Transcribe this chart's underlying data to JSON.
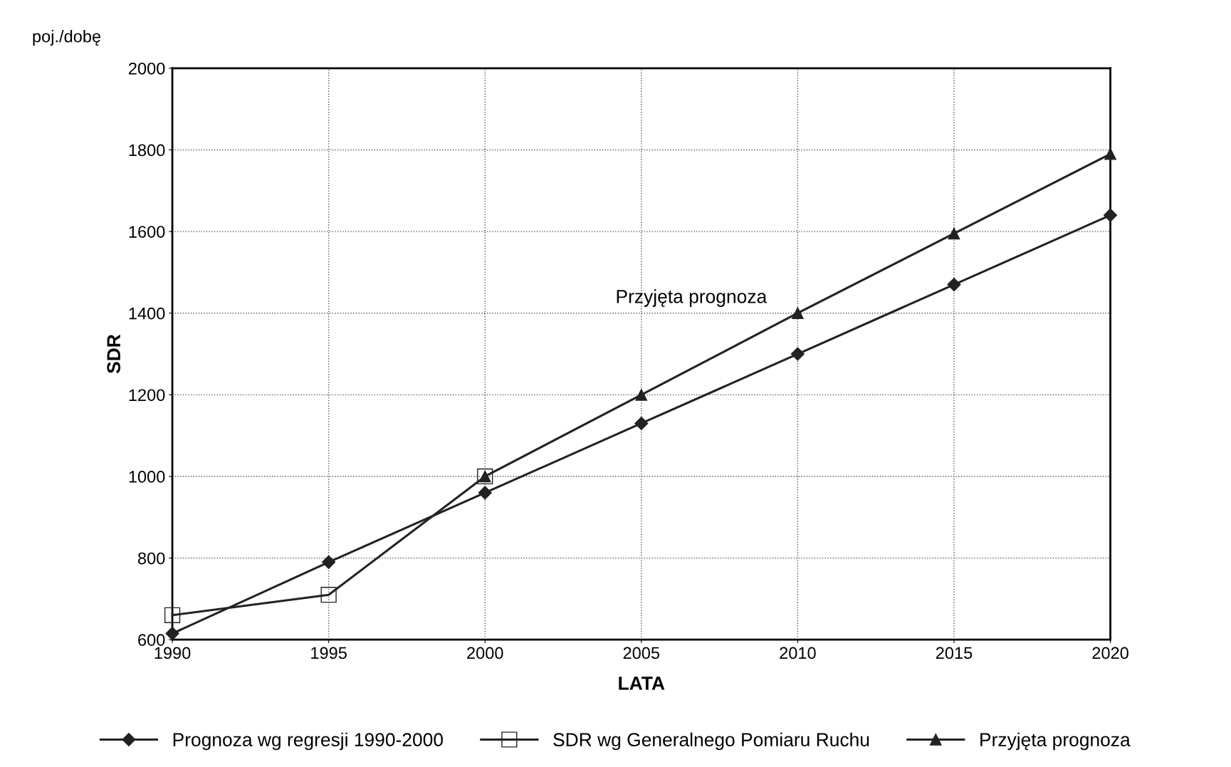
{
  "chart_data": {
    "type": "line",
    "xlabel": "LATA",
    "ylabel": "SDR",
    "x": [
      1990,
      1995,
      2000,
      2005,
      2010,
      2015,
      2020
    ],
    "series": [
      {
        "name": "Prognoza wg regresji 1990-2000",
        "color": "#222222",
        "marker": "diamond",
        "values": [
          615,
          790,
          960,
          1130,
          1300,
          1470,
          1640
        ]
      },
      {
        "name": "SDR wg Generalnego Pomiaru Ruchu",
        "color": "#222222",
        "marker": "square",
        "values": [
          660,
          710,
          1000,
          null,
          null,
          null,
          null
        ]
      },
      {
        "name": "Przyjęta prognoza",
        "color": "#222222",
        "marker": "triangle",
        "values": [
          null,
          null,
          1000,
          1200,
          1400,
          1595,
          1790
        ]
      }
    ],
    "annotations": [
      "poj./dobę",
      "Przyjęta prognoza"
    ],
    "xlim": [
      1990,
      2020
    ],
    "xticks": [
      1990,
      1995,
      2000,
      2005,
      2010,
      2015,
      2020
    ],
    "ylim": [
      600,
      2000
    ],
    "yticks": [
      600,
      800,
      1000,
      1200,
      1400,
      1600,
      1800,
      2000
    ],
    "grid": true,
    "legend": "bottom",
    "line_style": "solid"
  }
}
